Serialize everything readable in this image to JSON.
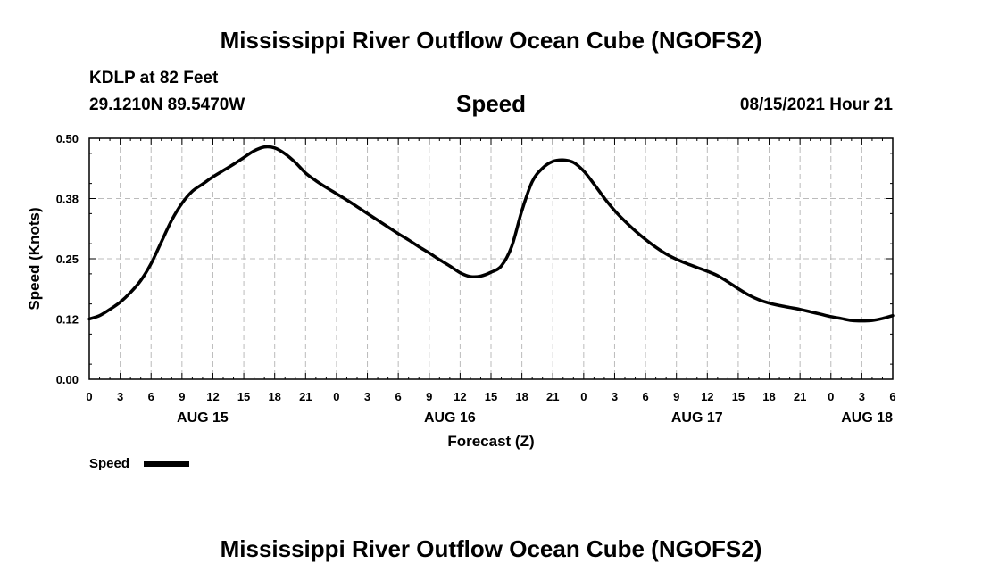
{
  "header": {
    "title": "Mississippi River Outflow Ocean Cube (NGOFS2)",
    "station": "KDLP at 82 Feet",
    "coords": "29.1210N  89.5470W",
    "variable": "Speed",
    "timestamp": "08/15/2021 Hour 21"
  },
  "footer": {
    "title": "Mississippi River Outflow Ocean Cube (NGOFS2)"
  },
  "colors": {
    "line": "#000000",
    "grid": "#bbbbbb",
    "background": "#ffffff"
  },
  "chart_data": {
    "type": "line",
    "title": "Speed",
    "xlabel": "Forecast (Z)",
    "ylabel": "Speed (Knots)",
    "x_unit": "hours since 08/15/2021 00Z",
    "xlim": [
      0,
      78
    ],
    "ylim": [
      0,
      0.5
    ],
    "grid": true,
    "y_ticks": [
      0,
      0.125,
      0.25,
      0.375,
      0.5
    ],
    "y_tick_labels": [
      "0.00",
      "0.12",
      "0.25",
      "0.38",
      "0.50"
    ],
    "x_ticks": [
      0,
      3,
      6,
      9,
      12,
      15,
      18,
      21,
      24,
      27,
      30,
      33,
      36,
      39,
      42,
      45,
      48,
      51,
      54,
      57,
      60,
      63,
      66,
      69,
      72,
      75,
      78
    ],
    "x_tick_labels": [
      "0",
      "3",
      "6",
      "9",
      "12",
      "15",
      "18",
      "21",
      "0",
      "3",
      "6",
      "9",
      "12",
      "15",
      "18",
      "21",
      "0",
      "3",
      "6",
      "9",
      "12",
      "15",
      "18",
      "21",
      "0",
      "3",
      "6"
    ],
    "day_labels": [
      {
        "x": 11,
        "label": "AUG 15"
      },
      {
        "x": 35,
        "label": "AUG 16"
      },
      {
        "x": 59,
        "label": "AUG 17"
      },
      {
        "x": 75.5,
        "label": "AUG 18"
      }
    ],
    "legend": {
      "label": "Speed",
      "position": "bottom-left"
    },
    "series": [
      {
        "name": "Speed",
        "x": [
          0,
          1,
          2,
          3,
          4,
          5,
          6,
          7,
          8,
          9,
          10,
          11,
          12,
          13,
          14,
          15,
          16,
          17,
          18,
          19,
          20,
          21,
          22,
          23,
          24,
          25,
          26,
          27,
          28,
          29,
          30,
          31,
          32,
          33,
          34,
          35,
          36,
          37,
          38,
          39,
          40,
          41,
          42,
          43,
          44,
          45,
          46,
          47,
          48,
          49,
          50,
          51,
          52,
          53,
          54,
          55,
          56,
          57,
          58,
          59,
          60,
          61,
          62,
          63,
          64,
          65,
          66,
          67,
          68,
          69,
          70,
          71,
          72,
          73,
          74,
          75,
          76,
          77,
          78
        ],
        "values": [
          0.125,
          0.132,
          0.145,
          0.16,
          0.18,
          0.205,
          0.24,
          0.285,
          0.33,
          0.365,
          0.39,
          0.405,
          0.42,
          0.433,
          0.446,
          0.46,
          0.474,
          0.482,
          0.48,
          0.468,
          0.45,
          0.428,
          0.412,
          0.398,
          0.385,
          0.372,
          0.358,
          0.344,
          0.33,
          0.316,
          0.302,
          0.289,
          0.275,
          0.262,
          0.248,
          0.235,
          0.221,
          0.213,
          0.214,
          0.222,
          0.235,
          0.275,
          0.35,
          0.41,
          0.438,
          0.452,
          0.455,
          0.45,
          0.432,
          0.405,
          0.376,
          0.35,
          0.328,
          0.308,
          0.29,
          0.274,
          0.26,
          0.249,
          0.24,
          0.232,
          0.224,
          0.215,
          0.202,
          0.188,
          0.175,
          0.165,
          0.158,
          0.153,
          0.149,
          0.145,
          0.14,
          0.135,
          0.13,
          0.126,
          0.122,
          0.121,
          0.122,
          0.126,
          0.132
        ]
      }
    ]
  }
}
